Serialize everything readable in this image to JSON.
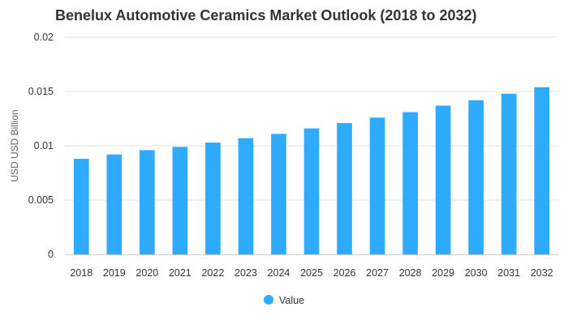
{
  "chart_data": {
    "type": "bar",
    "title": "Benelux Automotive Ceramics Market Outlook (2018 to 2032)",
    "xlabel": "",
    "ylabel": "USD USD Billion",
    "categories": [
      "2018",
      "2019",
      "2020",
      "2021",
      "2022",
      "2023",
      "2024",
      "2025",
      "2026",
      "2027",
      "2028",
      "2029",
      "2030",
      "2031",
      "2032"
    ],
    "series": [
      {
        "name": "Value",
        "color": "#2eaaff",
        "values": [
          0.0088,
          0.0092,
          0.0096,
          0.0099,
          0.0103,
          0.0107,
          0.0111,
          0.0116,
          0.0121,
          0.0126,
          0.0131,
          0.0137,
          0.0142,
          0.0148,
          0.0154
        ]
      }
    ],
    "ylim": [
      0,
      0.02
    ],
    "yticks": [
      "0",
      "0.005",
      "0.01",
      "0.015",
      "0.02"
    ],
    "grid": true,
    "legend_position": "bottom-center"
  }
}
